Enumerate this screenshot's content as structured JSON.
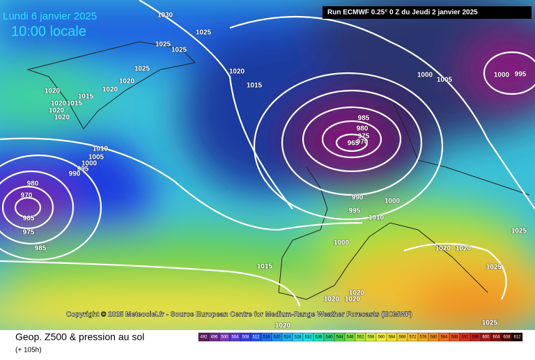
{
  "header": {
    "date": "Lundi 6 janvier 2025",
    "time": "10:00 locale",
    "run": "Run ECMWF 0.25° 0 Z du Jeudi 2 janvier 2025"
  },
  "map": {
    "copyright": "Copyright © 2025 Meteociel.fr - Source European Centre for Medium-Range Weather Forecasts (ECMWF)",
    "isobar_labels": [
      "1030",
      "1025",
      "1025",
      "1025",
      "1025",
      "1020",
      "1020",
      "1020",
      "1015",
      "1020",
      "1015",
      "1020",
      "1020",
      "1020",
      "1015",
      "1000",
      "1005",
      "1000",
      "995",
      "985",
      "980",
      "975",
      "970",
      "965",
      "1010",
      "1005",
      "1000",
      "995",
      "990",
      "980",
      "970",
      "965",
      "975",
      "985",
      "990",
      "995",
      "1000",
      "1010",
      "1000",
      "1020",
      "1020",
      "1025",
      "1015",
      "1025",
      "1020",
      "1020",
      "1020",
      "1025",
      "1020"
    ]
  },
  "footer": {
    "title": "Geop. Z500 & pression au sol",
    "lead": "(+ 105h)",
    "scale": [
      492,
      496,
      500,
      504,
      508,
      512,
      516,
      520,
      524,
      528,
      532,
      536,
      540,
      544,
      548,
      552,
      556,
      560,
      564,
      568,
      572,
      576,
      580,
      584,
      588,
      592,
      596,
      600,
      604,
      608,
      612
    ]
  }
}
